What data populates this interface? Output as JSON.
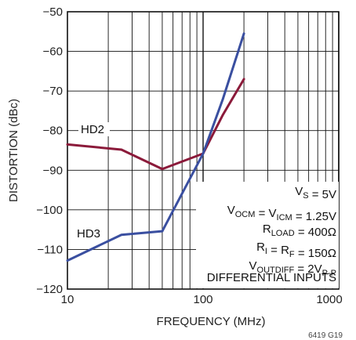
{
  "chart_data": {
    "type": "line",
    "xscale": "log",
    "xlim": [
      10,
      1000
    ],
    "ylim": [
      -120,
      -50
    ],
    "xlabel": "FREQUENCY (MHz)",
    "ylabel": "DISTORTION (dBc)",
    "xticks": [
      10,
      100,
      1000
    ],
    "xtick_labels": [
      "10",
      "100",
      "1000"
    ],
    "yticks": [
      -50,
      -60,
      -70,
      -80,
      -90,
      -100,
      -110,
      -120
    ],
    "ytick_labels": [
      "−50",
      "−60",
      "−70",
      "−80",
      "−90",
      "−100",
      "−110",
      "−120"
    ],
    "grid": true,
    "series": [
      {
        "name": "HD2",
        "color": "#8b1a3a",
        "x": [
          10,
          25,
          50,
          100,
          140,
          200
        ],
        "y": [
          -83.5,
          -84.8,
          -89.7,
          -85.8,
          -76,
          -67
        ]
      },
      {
        "name": "HD3",
        "color": "#3a4fa0",
        "x": [
          10,
          25,
          50,
          100,
          140,
          200
        ],
        "y": [
          -112.8,
          -106.3,
          -105.4,
          -85.8,
          -72,
          -55.5
        ]
      }
    ],
    "conditions": [
      {
        "main": "V",
        "sub": "S",
        "rest": " = 5V"
      },
      {
        "main": "V",
        "sub": "OCM",
        "rest": " = V",
        "sub2": "ICM",
        "rest2": " = 1.25V"
      },
      {
        "main": "R",
        "sub": "LOAD",
        "rest": " = 400Ω"
      },
      {
        "main": "R",
        "sub": "I",
        "rest": " = R",
        "sub2": "F",
        "rest2": " = 150Ω"
      },
      {
        "main": "V",
        "sub": "OUTDIFF",
        "rest": " = 2V",
        "sub2": "P-P",
        "rest2": ""
      },
      {
        "main": "DIFFERENTIAL INPUTS",
        "sub": "",
        "rest": ""
      }
    ],
    "figure_id": "6419 G19"
  }
}
